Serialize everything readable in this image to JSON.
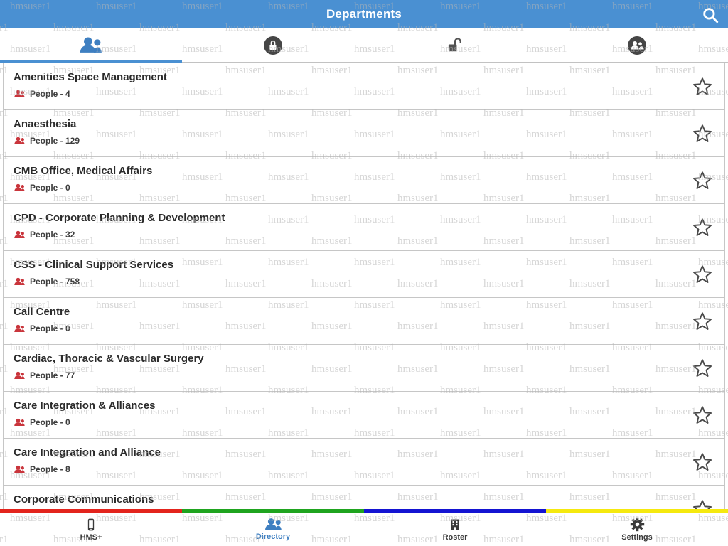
{
  "watermark": {
    "text": "hmsuser1"
  },
  "colors": {
    "accent": "#4a90d2",
    "people_icon_red": "#c9353c",
    "stripe": [
      "#e3241d",
      "#1fa41f",
      "#1414d2",
      "#f5e90f"
    ]
  },
  "header": {
    "title": "Departments",
    "icon": "search-icon"
  },
  "top_tabs": [
    {
      "icon": "people-icon",
      "active": true
    },
    {
      "icon": "lock-closed-circle-icon",
      "active": false
    },
    {
      "icon": "lock-open-icon",
      "active": false
    },
    {
      "icon": "people-circle-icon",
      "active": false
    }
  ],
  "departments": [
    {
      "name": "Amenities Space Management",
      "people": "People - 4"
    },
    {
      "name": "Anaesthesia",
      "people": "People - 129"
    },
    {
      "name": "CMB Office, Medical Affairs",
      "people": "People - 0"
    },
    {
      "name": "CPD - Corporate Planning & Development",
      "people": "People - 32"
    },
    {
      "name": "CSS - Clinical Support Services",
      "people": "People - 758"
    },
    {
      "name": "Call Centre",
      "people": "People - 0"
    },
    {
      "name": "Cardiac, Thoracic & Vascular Surgery",
      "people": "People - 77"
    },
    {
      "name": "Care Integration & Alliances",
      "people": "People - 0"
    },
    {
      "name": "Care Integration and Alliance",
      "people": "People - 8"
    },
    {
      "name": "Corporate Communications",
      "people": ""
    }
  ],
  "bottom_nav": [
    {
      "icon": "phone-icon",
      "label": "HMS+",
      "active": false
    },
    {
      "icon": "people-icon",
      "label": "Directory",
      "active": true
    },
    {
      "icon": "building-icon",
      "label": "Roster",
      "active": false
    },
    {
      "icon": "gear-icon",
      "label": "Settings",
      "active": false
    }
  ]
}
